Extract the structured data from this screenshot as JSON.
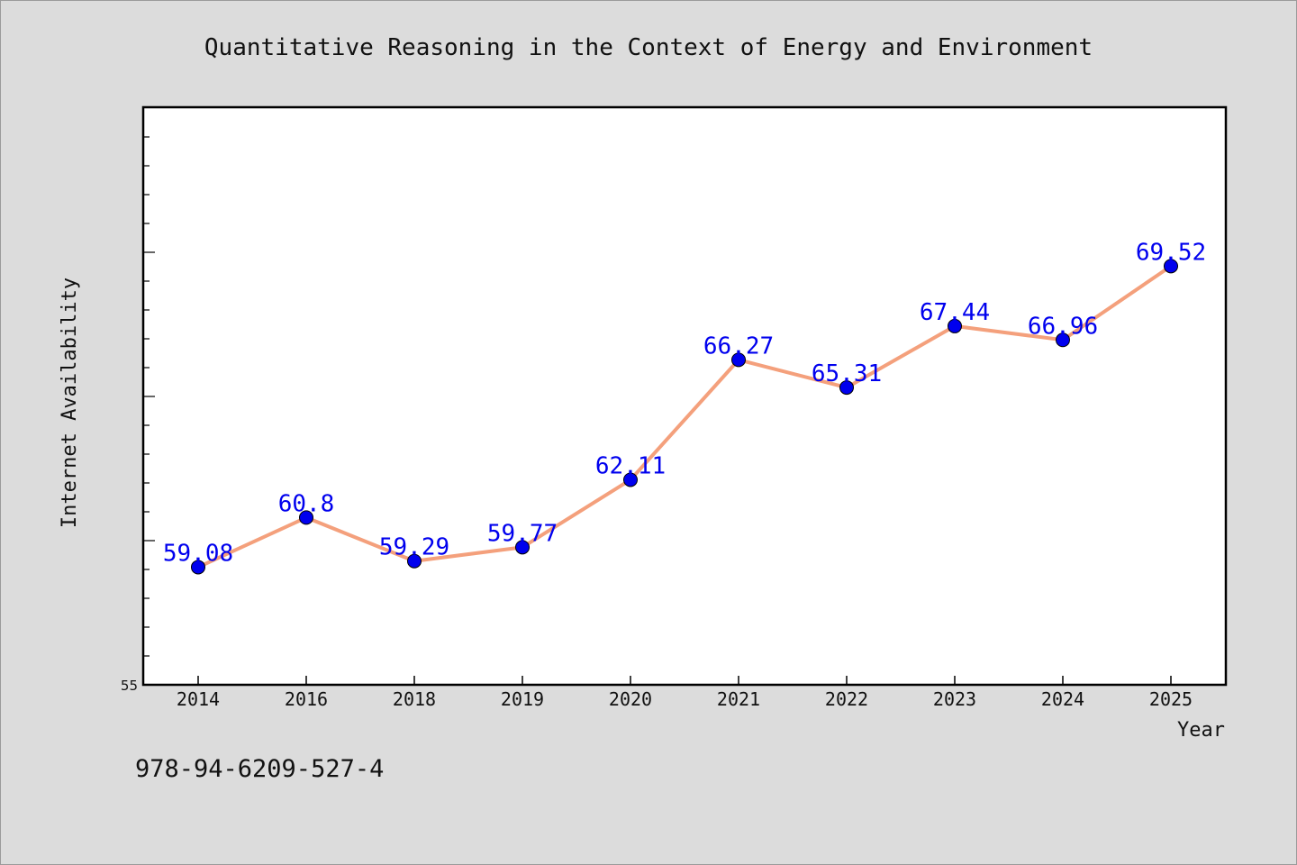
{
  "chart_data": {
    "type": "line",
    "title": "Quantitative Reasoning in the Context of Energy and Environment",
    "xlabel": "Year",
    "ylabel": "Internet Availability",
    "categories": [
      "2014",
      "2016",
      "2018",
      "2019",
      "2020",
      "2021",
      "2022",
      "2023",
      "2024",
      "2025"
    ],
    "series": [
      {
        "values": [
          59.08,
          60.8,
          59.29,
          59.77,
          62.11,
          66.27,
          65.31,
          67.44,
          66.96,
          69.52
        ]
      }
    ],
    "data_labels": [
      "59.08",
      "60.8",
      "59.29",
      "59.77",
      "62.11",
      "66.27",
      "65.31",
      "67.44",
      "66.96",
      "69.52"
    ],
    "ylim": [
      55,
      75
    ],
    "yticks_labeled": [
      "55"
    ],
    "grid": false,
    "line_color": "#f4a07c",
    "marker_color": "#0000ee"
  },
  "footer": {
    "isbn": "978-94-6209-527-4"
  }
}
